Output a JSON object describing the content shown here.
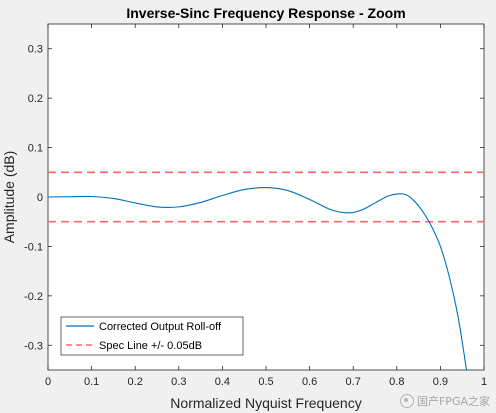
{
  "chart_data": {
    "type": "line",
    "title": "Inverse-Sinc Frequency Response - Zoom",
    "xlabel": "Normalized Nyquist Frequency",
    "ylabel": "Amplitude (dB)",
    "xlim": [
      0,
      1
    ],
    "ylim": [
      -0.35,
      0.35
    ],
    "xticks": [
      0,
      0.1,
      0.2,
      0.3,
      0.4,
      0.5,
      0.6,
      0.7,
      0.8,
      0.9,
      1
    ],
    "xtick_labels": [
      "0",
      "0.1",
      "0.2",
      "0.3",
      "0.4",
      "0.5",
      "0.6",
      "0.7",
      "0.8",
      "0.9",
      "1"
    ],
    "yticks": [
      0.3,
      0.2,
      0.1,
      0,
      -0.1,
      -0.2,
      -0.3
    ],
    "ytick_labels": [
      "0.3",
      "0.2",
      "0.1",
      "0",
      "-0.1",
      "-0.2",
      "-0.3"
    ],
    "grid": false,
    "legend_position": "bottom-left",
    "series": [
      {
        "name": "Corrected Output Roll-off",
        "color": "#0072bd",
        "style": "solid",
        "x": [
          0,
          0.05,
          0.1,
          0.15,
          0.2,
          0.25,
          0.3,
          0.35,
          0.4,
          0.45,
          0.5,
          0.55,
          0.6,
          0.65,
          0.69,
          0.72,
          0.75,
          0.78,
          0.8,
          0.82,
          0.84,
          0.86,
          0.88,
          0.9,
          0.92,
          0.94,
          0.96
        ],
        "y": [
          0,
          0.0005,
          0.001,
          -0.003,
          -0.012,
          -0.02,
          -0.02,
          -0.011,
          0.003,
          0.015,
          0.019,
          0.013,
          -0.005,
          -0.026,
          -0.032,
          -0.026,
          -0.012,
          0.002,
          0.006,
          0.005,
          -0.008,
          -0.03,
          -0.06,
          -0.1,
          -0.16,
          -0.24,
          -0.35
        ]
      },
      {
        "name": "Spec Line +/- 0.05dB",
        "color": "#ff6666",
        "style": "dashed",
        "hlines": [
          0.05,
          -0.05
        ]
      }
    ]
  },
  "watermark": {
    "text": "国产FPGA之家",
    "icon": "wechat-icon"
  }
}
